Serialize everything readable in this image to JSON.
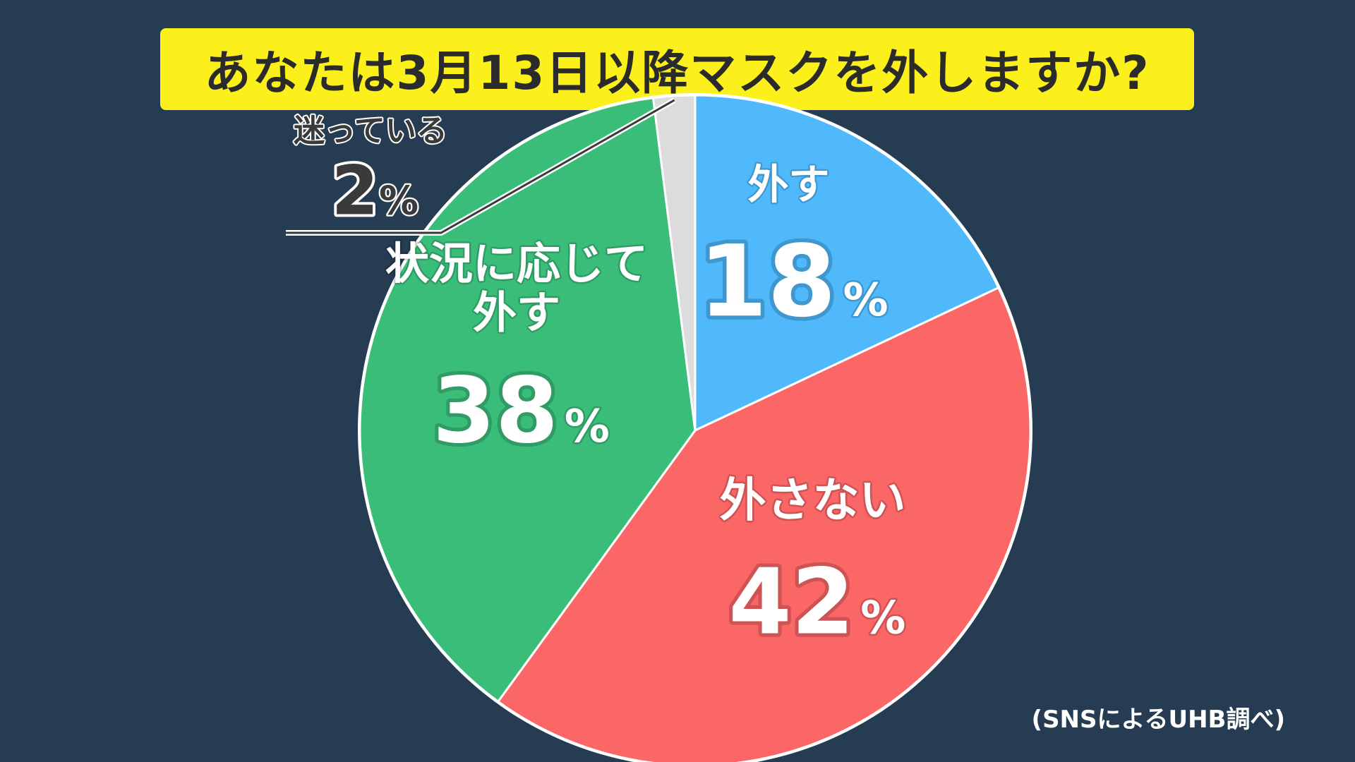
{
  "title": "あなたは3月13日以降マスクを外しますか?",
  "source": "(SNSによるUHB調べ)",
  "chart_data": {
    "type": "pie",
    "start_angle_deg": 0,
    "direction": "clockwise",
    "slices": [
      {
        "label_lines": [
          "外す"
        ],
        "value": 18,
        "value_text": "18",
        "unit": "%",
        "color": "#4fb9fc",
        "text_color": "#ffffff"
      },
      {
        "label_lines": [
          "外さない"
        ],
        "value": 42,
        "value_text": "42",
        "unit": "%",
        "color": "#fb6667",
        "text_color": "#ffffff"
      },
      {
        "label_lines": [
          "状況に応じて",
          "外す"
        ],
        "value": 38,
        "value_text": "38",
        "unit": "%",
        "color": "#3bbd7a",
        "text_color": "#ffffff"
      },
      {
        "label_lines": [
          "迷っている"
        ],
        "value": 2,
        "value_text": "2",
        "unit": "%",
        "color": "#dcdcdc",
        "text_color": "#3a3a3a"
      }
    ]
  }
}
